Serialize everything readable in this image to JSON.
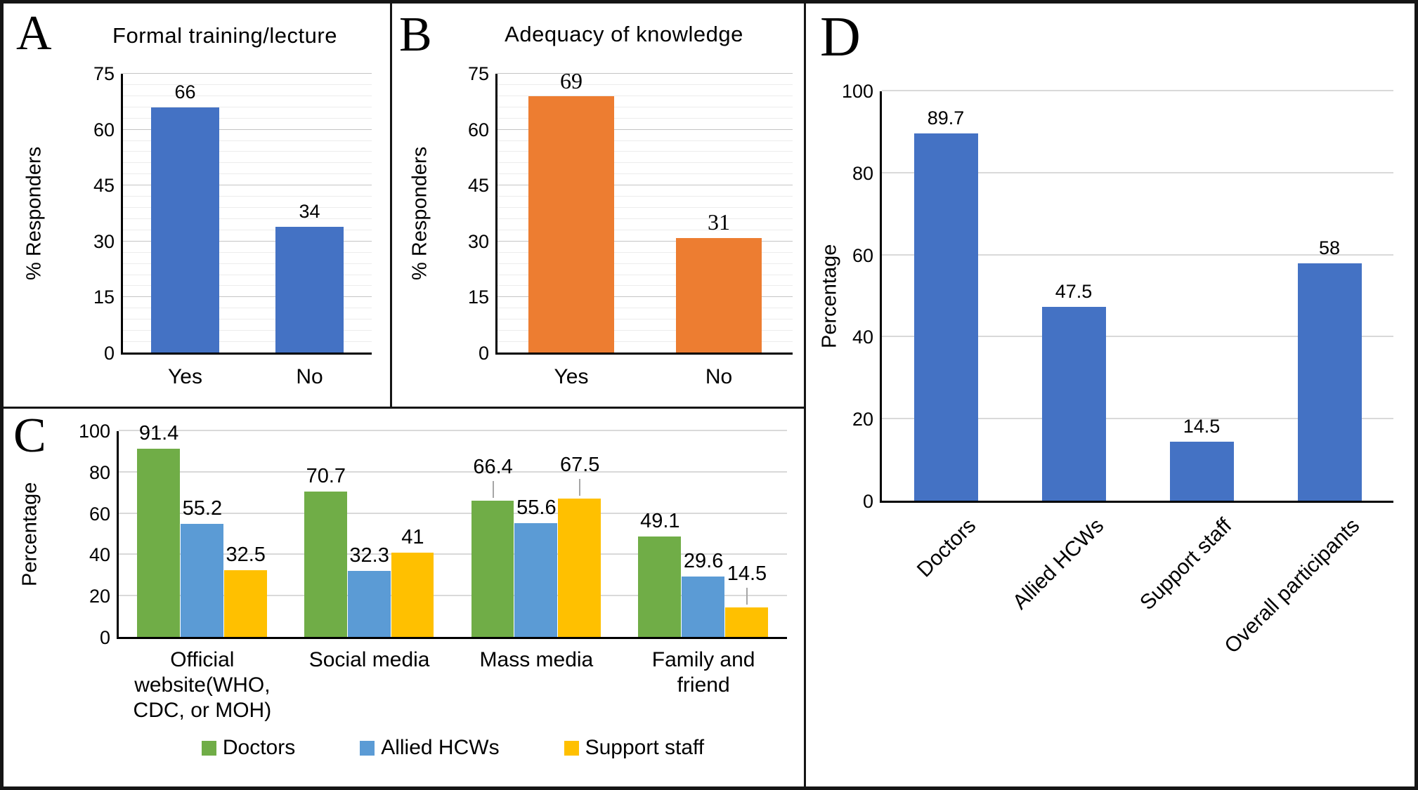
{
  "figure_label_a": "A",
  "figure_label_b": "B",
  "figure_label_c": "C",
  "figure_label_d": "D",
  "chart_data": [
    {
      "id": "A",
      "panel_label": "A",
      "type": "bar",
      "title": "Formal training/lecture",
      "categories": [
        "Yes",
        "No"
      ],
      "values": [
        66,
        34
      ],
      "bar_color": "#4472c4",
      "xlabel": "",
      "ylabel": "% Responders",
      "ylim": [
        0,
        75
      ],
      "yticks": [
        0,
        15,
        30,
        45,
        60,
        75
      ],
      "minor_gridline_step": 3,
      "grid": true,
      "legend": null
    },
    {
      "id": "B",
      "panel_label": "B",
      "type": "bar",
      "title": "Adequacy of knowledge",
      "categories": [
        "Yes",
        "No"
      ],
      "values": [
        69,
        31
      ],
      "bar_color": "#ed7d31",
      "xlabel": "",
      "ylabel": "% Responders",
      "ylim": [
        0,
        75
      ],
      "yticks": [
        0,
        15,
        30,
        45,
        60,
        75
      ],
      "minor_gridline_step": 3,
      "grid": true,
      "legend": null
    },
    {
      "id": "C",
      "panel_label": "C",
      "type": "bar",
      "title": "",
      "categories": [
        "Official website(WHO, CDC, or MOH)",
        "Social media",
        "Mass media",
        "Family and friend"
      ],
      "category_display": [
        "Official\nwebsite(WHO,\nCDC, or MOH)",
        "Social media",
        "Mass media",
        "Family and\nfriend"
      ],
      "series": [
        {
          "name": "Doctors",
          "color": "#70ad47",
          "values": [
            91.4,
            70.7,
            66.4,
            49.1
          ],
          "label_leaders": [
            0,
            0,
            1,
            0
          ]
        },
        {
          "name": "Allied HCWs",
          "color": "#5b9bd5",
          "values": [
            55.2,
            32.3,
            55.6,
            29.6
          ],
          "label_leaders": [
            0,
            0,
            0,
            0
          ]
        },
        {
          "name": "Support staff",
          "color": "#ffc000",
          "values": [
            32.5,
            41,
            67.5,
            14.5
          ],
          "label_leaders": [
            0,
            0,
            1,
            1
          ]
        }
      ],
      "xlabel": "",
      "ylabel": "Percentage",
      "ylim": [
        0,
        100
      ],
      "yticks": [
        0,
        20,
        40,
        60,
        80,
        100
      ],
      "grid": true,
      "legend_position": "bottom"
    },
    {
      "id": "D",
      "panel_label": "D",
      "type": "bar",
      "title": "",
      "categories": [
        "Doctors",
        "Allied HCWs",
        "Support staff",
        "Overall participants"
      ],
      "values": [
        89.7,
        47.5,
        14.5,
        58
      ],
      "bar_color": "#4472c4",
      "xlabel": "",
      "ylabel": "Percentage",
      "ylim": [
        0,
        100
      ],
      "yticks": [
        0,
        20,
        40,
        60,
        80,
        100
      ],
      "xtick_rotation": -45,
      "grid": true,
      "legend": null
    }
  ]
}
